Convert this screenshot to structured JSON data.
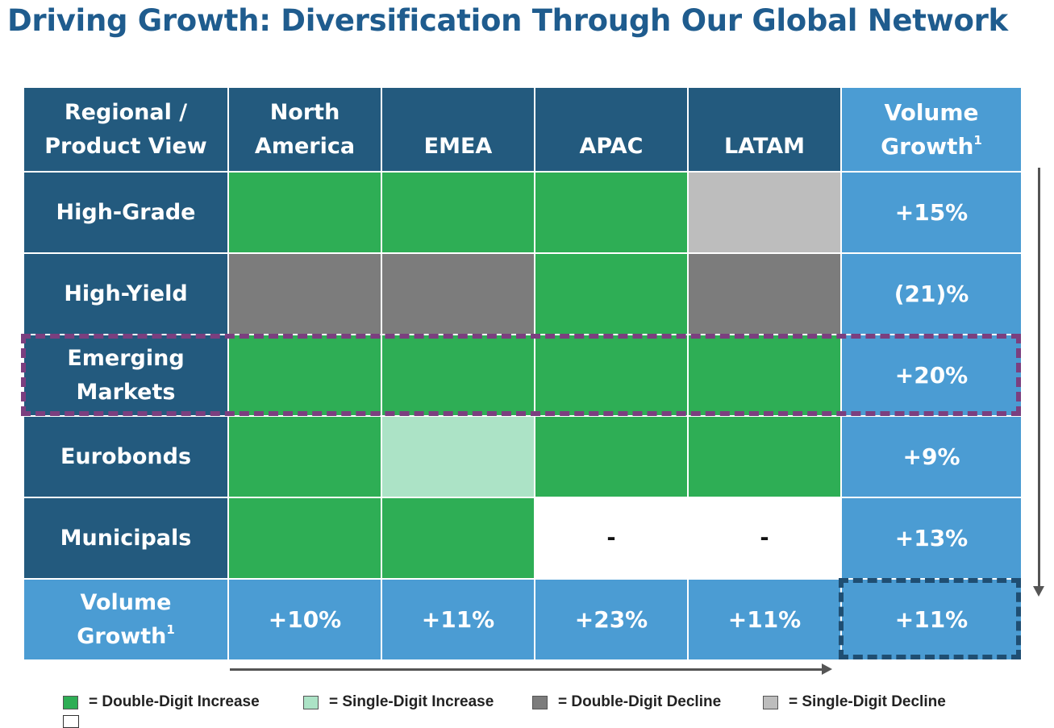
{
  "title": "Driving Growth: Diversification Through Our Global Network",
  "header": {
    "row_label": [
      "Regional /",
      "Product View"
    ],
    "regions": [
      [
        "North",
        "America"
      ],
      [
        "",
        "EMEA"
      ],
      [
        "",
        "APAC"
      ],
      [
        "",
        "LATAM"
      ]
    ],
    "volume_growth": "Volume",
    "volume_growth_2": "Growth",
    "footnote_marker": "1"
  },
  "rows": [
    {
      "label": [
        "High-Grade"
      ],
      "cells": [
        "double-increase",
        "double-increase",
        "double-increase",
        "single-decline"
      ],
      "cell_text": [
        "",
        "",
        "",
        ""
      ],
      "total": "+15%"
    },
    {
      "label": [
        "High-Yield"
      ],
      "cells": [
        "double-decline",
        "double-decline",
        "double-increase",
        "double-decline"
      ],
      "cell_text": [
        "",
        "",
        "",
        ""
      ],
      "total": "(21)%"
    },
    {
      "label": [
        "Emerging",
        "Markets"
      ],
      "cells": [
        "double-increase",
        "double-increase",
        "double-increase",
        "double-increase"
      ],
      "cell_text": [
        "",
        "",
        "",
        ""
      ],
      "total": "+20%"
    },
    {
      "label": [
        "Eurobonds"
      ],
      "cells": [
        "double-increase",
        "single-increase",
        "double-increase",
        "double-increase"
      ],
      "cell_text": [
        "",
        "",
        "",
        ""
      ],
      "total": "+9%"
    },
    {
      "label": [
        "Municipals"
      ],
      "cells": [
        "double-increase",
        "double-increase",
        "not-available",
        "not-available"
      ],
      "cell_text": [
        "",
        "",
        "-",
        "-"
      ],
      "total": "+13%"
    }
  ],
  "footer": {
    "label": [
      "Volume",
      "Growth"
    ],
    "region_totals": [
      "+10%",
      "+11%",
      "+23%",
      "+11%"
    ],
    "grand_total": "+11%"
  },
  "legend": [
    {
      "key": "double-increase",
      "label": "= Double-Digit Increase"
    },
    {
      "key": "single-increase",
      "label": "= Single-Digit Increase"
    },
    {
      "key": "double-decline",
      "label": "= Double-Digit Decline"
    },
    {
      "key": "single-decline",
      "label": "= Single-Digit Decline"
    }
  ],
  "colors": {
    "title": "#1f5c8e",
    "header_dark": "#235a7e",
    "volume_blue": "#4b9cd3",
    "double-increase": "#2eae55",
    "single-increase": "#ace3c6",
    "double-decline": "#7c7c7c",
    "single-decline": "#bdbdbd",
    "not-available": "#ffffff",
    "highlight_row_border": "#7b3f7f",
    "highlight_total_border": "#1f4e72"
  }
}
